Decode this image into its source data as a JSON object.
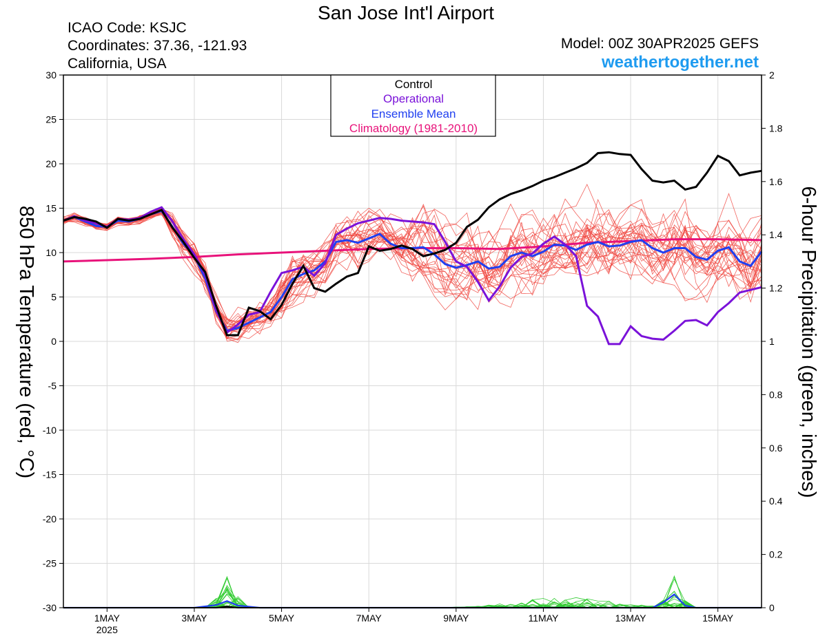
{
  "header": {
    "title": "San Jose Int'l Airport",
    "icao": "ICAO Code: KSJC",
    "coords": "Coordinates: 37.36, -121.93",
    "region": "California, USA",
    "model": "Model: 00Z 30APR2025 GEFS",
    "site": "weathertogether.net"
  },
  "colors": {
    "control": "#000000",
    "operational": "#7a12d9",
    "mean": "#1f3ff0",
    "climo": "#e8127a",
    "members": "#f0473f",
    "precip": "#33cc33",
    "site": "#1e9bf0"
  },
  "chart_data": {
    "type": "line",
    "ylabel": "850 hPa Temperature (red, °C)",
    "y2label": "6-hour Precipitation (green, inches)",
    "x_range_days": [
      0,
      16
    ],
    "xticks": [
      {
        "label": "1MAY",
        "sub": "2025",
        "day": 1.0
      },
      {
        "label": "3MAY",
        "day": 3.0
      },
      {
        "label": "5MAY",
        "day": 5.0
      },
      {
        "label": "7MAY",
        "day": 7.0
      },
      {
        "label": "9MAY",
        "day": 9.0
      },
      {
        "label": "11MAY",
        "day": 11.0
      },
      {
        "label": "13MAY",
        "day": 13.0
      },
      {
        "label": "15MAY",
        "day": 15.0
      }
    ],
    "ylim": [
      -30,
      30
    ],
    "yticks": [
      30,
      25,
      20,
      15,
      10,
      5,
      0,
      -5,
      -10,
      -15,
      -20,
      -25,
      -30
    ],
    "y2lim": [
      0,
      2
    ],
    "y2ticks": [
      2,
      1.8,
      1.6,
      1.4,
      1.2,
      1,
      0.8,
      0.6,
      0.4,
      0.2,
      0
    ],
    "legend": {
      "position": "top-center",
      "entries": [
        {
          "label": "Control",
          "key": "control"
        },
        {
          "label": "Operational",
          "key": "operational"
        },
        {
          "label": "Ensemble Mean",
          "key": "mean"
        },
        {
          "label": "Climatology (1981-2010)",
          "key": "climo"
        }
      ]
    },
    "series": {
      "control": [
        [
          0,
          13.6
        ],
        [
          0.25,
          14.0
        ],
        [
          0.5,
          13.8
        ],
        [
          0.75,
          13.5
        ],
        [
          1.0,
          12.8
        ],
        [
          1.25,
          13.8
        ],
        [
          1.5,
          13.6
        ],
        [
          1.75,
          13.8
        ],
        [
          2.0,
          14.3
        ],
        [
          2.25,
          14.8
        ],
        [
          2.5,
          12.8
        ],
        [
          2.75,
          11.2
        ],
        [
          3.0,
          9.4
        ],
        [
          3.25,
          7.8
        ],
        [
          3.5,
          4.0
        ],
        [
          3.75,
          0.7
        ],
        [
          4.0,
          0.7
        ],
        [
          4.25,
          3.8
        ],
        [
          4.5,
          3.4
        ],
        [
          4.75,
          2.5
        ],
        [
          5.0,
          4.1
        ],
        [
          5.25,
          6.5
        ],
        [
          5.5,
          8.5
        ],
        [
          5.75,
          6.0
        ],
        [
          6.0,
          5.6
        ],
        [
          6.25,
          6.5
        ],
        [
          6.5,
          7.3
        ],
        [
          6.75,
          7.7
        ],
        [
          7.0,
          10.7
        ],
        [
          7.25,
          10.2
        ],
        [
          7.5,
          10.4
        ],
        [
          7.75,
          10.8
        ],
        [
          8.0,
          10.4
        ],
        [
          8.25,
          9.6
        ],
        [
          8.5,
          9.9
        ],
        [
          8.75,
          10.3
        ],
        [
          9.0,
          11.1
        ],
        [
          9.25,
          12.9
        ],
        [
          9.5,
          13.7
        ],
        [
          9.75,
          15.1
        ],
        [
          10.0,
          16.0
        ],
        [
          10.25,
          16.6
        ],
        [
          10.5,
          17.0
        ],
        [
          10.75,
          17.5
        ],
        [
          11.0,
          18.1
        ],
        [
          11.25,
          18.5
        ],
        [
          11.5,
          19.0
        ],
        [
          11.75,
          19.5
        ],
        [
          12.0,
          20.1
        ],
        [
          12.25,
          21.2
        ],
        [
          12.5,
          21.3
        ],
        [
          12.75,
          21.1
        ],
        [
          13.0,
          21.0
        ],
        [
          13.25,
          19.4
        ],
        [
          13.5,
          18.1
        ],
        [
          13.75,
          17.9
        ],
        [
          14.0,
          18.1
        ],
        [
          14.25,
          17.1
        ],
        [
          14.5,
          17.4
        ],
        [
          14.75,
          19.0
        ],
        [
          15.0,
          20.9
        ],
        [
          15.25,
          20.3
        ],
        [
          15.5,
          18.7
        ],
        [
          15.75,
          19.0
        ],
        [
          16.0,
          19.2
        ]
      ],
      "operational": [
        [
          0,
          13.6
        ],
        [
          0.25,
          14.1
        ],
        [
          0.5,
          13.6
        ],
        [
          0.75,
          13.3
        ],
        [
          1.0,
          12.9
        ],
        [
          1.25,
          13.8
        ],
        [
          1.5,
          13.7
        ],
        [
          1.75,
          13.9
        ],
        [
          2.0,
          14.6
        ],
        [
          2.25,
          15.1
        ],
        [
          2.5,
          13.5
        ],
        [
          2.75,
          11.5
        ],
        [
          3.0,
          9.8
        ],
        [
          3.25,
          7.5
        ],
        [
          3.5,
          3.5
        ],
        [
          3.75,
          1.0
        ],
        [
          4.0,
          1.9
        ],
        [
          4.25,
          3.0
        ],
        [
          4.5,
          3.3
        ],
        [
          4.75,
          5.6
        ],
        [
          5.0,
          7.7
        ],
        [
          5.25,
          8.0
        ],
        [
          5.5,
          8.4
        ],
        [
          5.75,
          7.4
        ],
        [
          6.0,
          8.8
        ],
        [
          6.25,
          12.0
        ],
        [
          6.5,
          12.7
        ],
        [
          6.75,
          13.3
        ],
        [
          7.0,
          13.6
        ],
        [
          7.25,
          13.9
        ],
        [
          7.5,
          13.8
        ],
        [
          7.75,
          13.6
        ],
        [
          8.0,
          13.5
        ],
        [
          8.25,
          13.4
        ],
        [
          8.5,
          13.2
        ],
        [
          8.75,
          11.2
        ],
        [
          9.0,
          9.0
        ],
        [
          9.25,
          8.4
        ],
        [
          9.5,
          6.7
        ],
        [
          9.75,
          4.6
        ],
        [
          10.0,
          6.2
        ],
        [
          10.25,
          8.3
        ],
        [
          10.5,
          9.5
        ],
        [
          10.75,
          9.9
        ],
        [
          11.0,
          11.0
        ],
        [
          11.25,
          11.8
        ],
        [
          11.5,
          10.9
        ],
        [
          11.75,
          9.6
        ],
        [
          12.0,
          4.0
        ],
        [
          12.25,
          2.8
        ],
        [
          12.5,
          -0.3
        ],
        [
          12.75,
          -0.3
        ],
        [
          13.0,
          1.7
        ],
        [
          13.25,
          0.6
        ],
        [
          13.5,
          0.3
        ],
        [
          13.75,
          0.2
        ],
        [
          14.0,
          1.2
        ],
        [
          14.25,
          2.3
        ],
        [
          14.5,
          2.4
        ],
        [
          14.75,
          1.8
        ],
        [
          15.0,
          3.3
        ],
        [
          15.25,
          4.3
        ],
        [
          15.5,
          5.5
        ],
        [
          15.75,
          5.8
        ],
        [
          16.0,
          6.1
        ]
      ],
      "mean": [
        [
          0,
          13.6
        ],
        [
          0.25,
          14.0
        ],
        [
          0.5,
          13.5
        ],
        [
          0.75,
          13.0
        ],
        [
          1.0,
          12.9
        ],
        [
          1.25,
          13.6
        ],
        [
          1.5,
          13.5
        ],
        [
          1.75,
          13.8
        ],
        [
          2.0,
          14.3
        ],
        [
          2.25,
          14.7
        ],
        [
          2.5,
          12.9
        ],
        [
          2.75,
          11.0
        ],
        [
          3.0,
          9.6
        ],
        [
          3.25,
          7.1
        ],
        [
          3.5,
          3.4
        ],
        [
          3.75,
          1.2
        ],
        [
          4.0,
          1.5
        ],
        [
          4.25,
          2.1
        ],
        [
          4.5,
          2.7
        ],
        [
          4.75,
          3.3
        ],
        [
          5.0,
          5.0
        ],
        [
          5.25,
          7.0
        ],
        [
          5.5,
          7.6
        ],
        [
          5.75,
          8.0
        ],
        [
          6.0,
          9.0
        ],
        [
          6.25,
          11.2
        ],
        [
          6.5,
          11.4
        ],
        [
          6.75,
          11.1
        ],
        [
          7.0,
          11.6
        ],
        [
          7.25,
          12.1
        ],
        [
          7.5,
          11.0
        ],
        [
          7.75,
          10.5
        ],
        [
          8.0,
          10.5
        ],
        [
          8.25,
          10.6
        ],
        [
          8.5,
          9.8
        ],
        [
          8.75,
          8.7
        ],
        [
          9.0,
          8.3
        ],
        [
          9.25,
          8.6
        ],
        [
          9.5,
          9.0
        ],
        [
          9.75,
          8.2
        ],
        [
          10.0,
          8.4
        ],
        [
          10.25,
          9.6
        ],
        [
          10.5,
          10.0
        ],
        [
          10.75,
          9.6
        ],
        [
          11.0,
          10.1
        ],
        [
          11.25,
          10.9
        ],
        [
          11.5,
          10.8
        ],
        [
          11.75,
          10.3
        ],
        [
          12.0,
          10.9
        ],
        [
          12.25,
          11.2
        ],
        [
          12.5,
          10.7
        ],
        [
          12.75,
          10.8
        ],
        [
          13.0,
          11.2
        ],
        [
          13.25,
          11.4
        ],
        [
          13.5,
          10.5
        ],
        [
          13.75,
          10.0
        ],
        [
          14.0,
          10.5
        ],
        [
          14.25,
          10.5
        ],
        [
          14.5,
          9.5
        ],
        [
          14.75,
          9.2
        ],
        [
          15.0,
          10.2
        ],
        [
          15.25,
          10.6
        ],
        [
          15.5,
          9.0
        ],
        [
          15.75,
          8.5
        ],
        [
          16.0,
          10.1
        ]
      ],
      "climatology": [
        [
          0,
          9.0
        ],
        [
          1,
          9.15
        ],
        [
          2,
          9.3
        ],
        [
          3,
          9.5
        ],
        [
          4,
          9.8
        ],
        [
          5,
          10.0
        ],
        [
          6,
          10.2
        ],
        [
          7,
          10.4
        ],
        [
          8,
          10.5
        ],
        [
          9,
          10.5
        ],
        [
          10,
          10.4
        ],
        [
          11,
          10.7
        ],
        [
          12,
          11.1
        ],
        [
          13,
          11.3
        ],
        [
          14,
          11.5
        ],
        [
          15,
          11.5
        ],
        [
          16,
          11.4
        ]
      ],
      "mean_precip_inches": [
        [
          0,
          0
        ],
        [
          3.0,
          0
        ],
        [
          3.5,
          0.01
        ],
        [
          3.75,
          0.025
        ],
        [
          4.0,
          0.008
        ],
        [
          4.5,
          0
        ],
        [
          13.5,
          0
        ],
        [
          13.75,
          0.02
        ],
        [
          14.0,
          0.05
        ],
        [
          14.25,
          0.008
        ],
        [
          14.5,
          0
        ],
        [
          16,
          0
        ]
      ],
      "control_precip_inches": [
        [
          0,
          0
        ],
        [
          3.5,
          0
        ],
        [
          3.75,
          0.005
        ],
        [
          4.0,
          0
        ],
        [
          16,
          0
        ]
      ]
    },
    "members_count": 30,
    "precip_members_count": 30
  }
}
